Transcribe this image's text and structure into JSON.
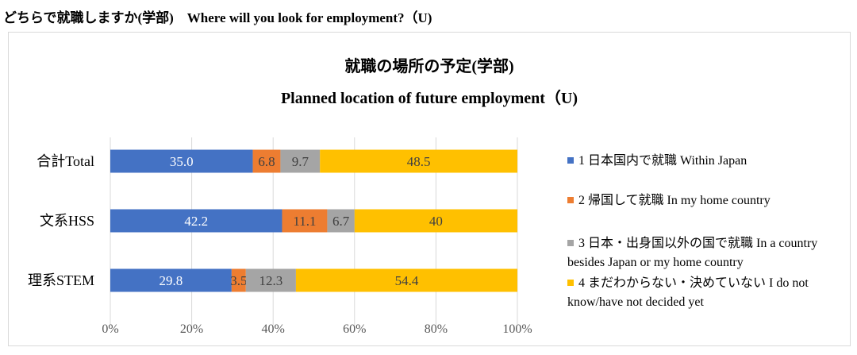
{
  "page": {
    "heading": "どちらで就職しますか(学部)　Where will you look for employment?（U)"
  },
  "chart_data": {
    "type": "stacked-bar-horizontal",
    "title": "就職の場所の予定(学部)",
    "subtitle": "Planned location of future employment（U)",
    "categories": [
      "合計Total",
      "文系HSS",
      "理系STEM"
    ],
    "series": [
      {
        "name": "1 日本国内で就職 Within Japan",
        "color": "#4472c4",
        "values": [
          35.0,
          42.2,
          29.8
        ],
        "labels": [
          "35.0",
          "42.2",
          "29.8"
        ]
      },
      {
        "name": "2 帰国して就職 In my home country",
        "color": "#ed7d31",
        "values": [
          6.8,
          11.1,
          3.5
        ],
        "labels": [
          "6.8",
          "11.1",
          "3.5"
        ]
      },
      {
        "name": "3 日本・出身国以外の国で就職 In a country besides Japan or my home country",
        "color": "#a5a5a5",
        "values": [
          9.7,
          6.7,
          12.3
        ],
        "labels": [
          "9.7",
          "6.7",
          "12.3"
        ]
      },
      {
        "name": "4 まだわからない・決めていない I do not know/have not decided yet",
        "color": "#ffc000",
        "values": [
          48.5,
          40,
          54.4
        ],
        "labels": [
          "48.5",
          "40",
          "54.4"
        ]
      }
    ],
    "legend": [
      [
        "1 日本国内で就職 Within Japan"
      ],
      [
        "2 帰国して就職 In my home country"
      ],
      [
        "3 日本・出身国以外の国で就職 In a country",
        "besides Japan or my home country"
      ],
      [
        "4 まだわからない・決めていない I do not",
        "know/have not decided yet"
      ]
    ],
    "xaxis": {
      "ticks": [
        "0%",
        "20%",
        "40%",
        "60%",
        "80%",
        "100%"
      ],
      "range": [
        0,
        100
      ]
    },
    "grid": true,
    "legend_position": "right"
  }
}
